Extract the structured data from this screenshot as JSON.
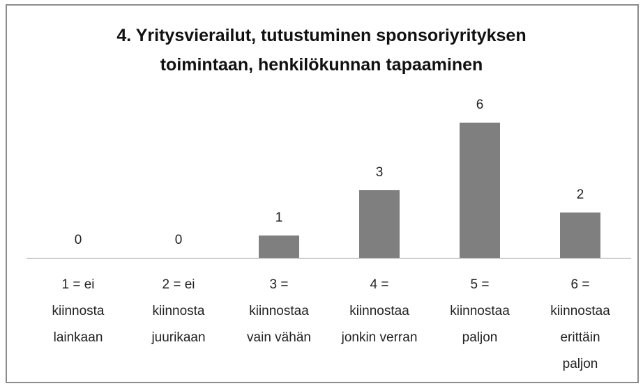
{
  "chart_data": {
    "type": "bar",
    "title": "4. Yritysvierailut, tutustuminen sponsoriyrityksen toimintaan, henkilökunnan tapaaminen",
    "categories": [
      "1 = ei kiinnosta lainkaan",
      "2 = ei kiinnosta juurikaan",
      "3 = kiinnostaa vain vähän",
      "4 = kiinnostaa jonkin verran",
      "5 = kiinnostaa paljon",
      "6 = kiinnostaa erittäin paljon"
    ],
    "values": [
      0,
      0,
      1,
      3,
      6,
      2
    ],
    "color": "#7f7f7f"
  }
}
